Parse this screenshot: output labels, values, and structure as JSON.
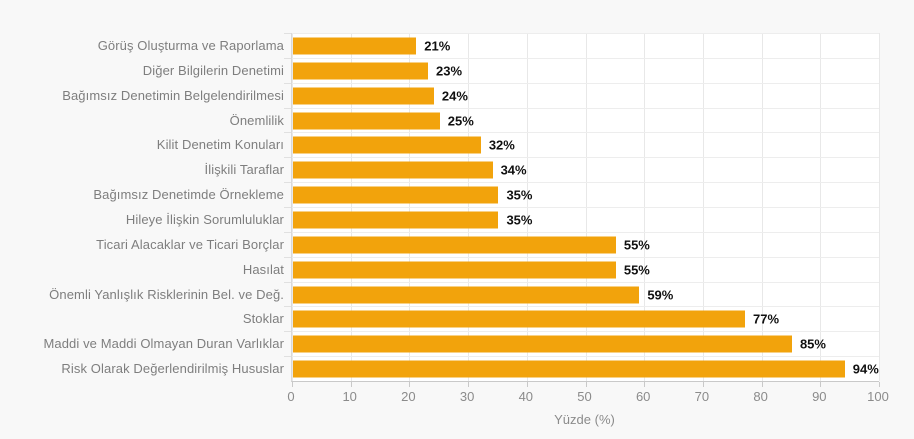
{
  "chart_data": {
    "type": "bar",
    "orientation": "horizontal",
    "title": "",
    "xlabel": "Yüzde (%)",
    "ylabel": "",
    "xlim": [
      0,
      100
    ],
    "x_ticks": [
      0,
      10,
      20,
      30,
      40,
      50,
      60,
      70,
      80,
      90,
      100
    ],
    "grid": true,
    "categories": [
      "Görüş Oluşturma ve Raporlama",
      "Diğer Bilgilerin Denetimi",
      "Bağımsız Denetimin Belgelendirilmesi",
      "Önemlilik",
      "Kilit Denetim Konuları",
      "İlişkili Taraflar",
      "Bağımsız Denetimde Örnekleme",
      "Hileye İlişkin Sorumluluklar",
      "Ticari Alacaklar ve Ticari Borçlar",
      "Hasılat",
      "Önemli Yanlışlık Risklerinin Bel. ve Değ.",
      "Stoklar",
      "Maddi ve Maddi Olmayan Duran Varlıklar",
      "Risk Olarak Değerlendirilmiş Hususlar"
    ],
    "values": [
      21,
      23,
      24,
      25,
      32,
      34,
      35,
      35,
      55,
      55,
      59,
      77,
      85,
      94
    ],
    "value_labels": [
      "21%",
      "23%",
      "24%",
      "25%",
      "32%",
      "34%",
      "35%",
      "35%",
      "55%",
      "55%",
      "59%",
      "77%",
      "85%",
      "94%"
    ],
    "colors": {
      "bar": "#F2A30C",
      "background": "#f8f8f8",
      "plot_background": "#ffffff",
      "gridline": "#e8e8e8",
      "category_label": "#7e7e7e",
      "tick_label": "#8b8b8b",
      "value_label": "#111111"
    }
  }
}
